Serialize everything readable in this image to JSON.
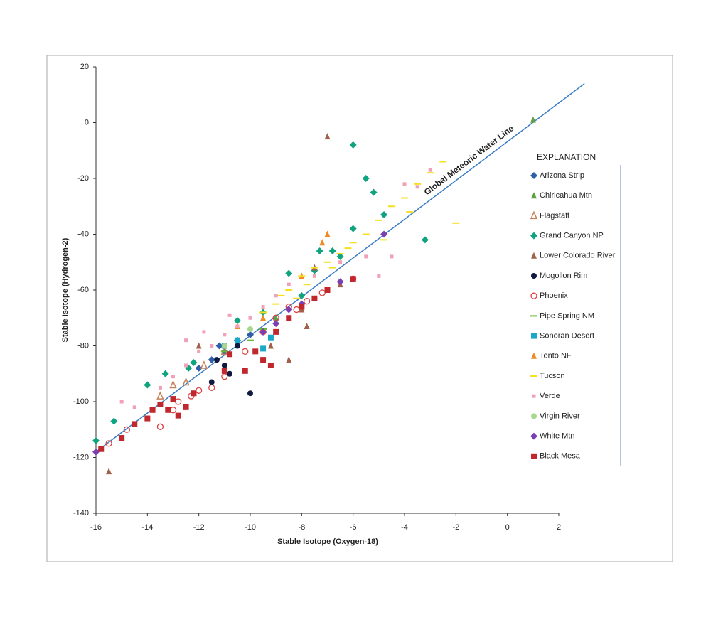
{
  "chart_data": {
    "type": "scatter",
    "x_label": "Stable Isotope (Oxygen-18)",
    "y_label": "Stable Isotope (Hydrogen-2)",
    "xlim": [
      -16,
      2
    ],
    "ylim": [
      -140,
      20
    ],
    "xticks": [
      -16,
      -14,
      -12,
      -10,
      -8,
      -6,
      -4,
      -2,
      0,
      2
    ],
    "yticks": [
      20,
      0,
      -20,
      -40,
      -60,
      -80,
      -100,
      -120,
      -140
    ],
    "legend_title": "EXPLANATION",
    "legend_position": "right",
    "reference_line": {
      "label": "Global Meteoric Water Line",
      "color": "#3a7cc4",
      "x": [
        -16,
        3
      ],
      "y": [
        -118,
        14
      ]
    },
    "series": [
      {
        "name": "Arizona Strip",
        "marker": "diamond",
        "color": "#2e5fa8",
        "x": [
          -11.5,
          -11,
          -10.5,
          -12,
          -10,
          -11.2
        ],
        "values": [
          -85,
          -82,
          -78,
          -88,
          -76,
          -80
        ]
      },
      {
        "name": "Chiricahua Mtn",
        "marker": "triangle",
        "color": "#5fa040",
        "x": [
          1,
          -9
        ],
        "values": [
          1,
          -70
        ]
      },
      {
        "name": "Flagstaff",
        "marker": "open-triangle",
        "color": "#c8805a",
        "x": [
          -13.5,
          -12.5,
          -11.8,
          -11,
          -13
        ],
        "values": [
          -98,
          -93,
          -87,
          -82,
          -94
        ]
      },
      {
        "name": "Grand Canyon NP",
        "marker": "diamond",
        "color": "#10a37f",
        "x": [
          -6,
          -5.5,
          -16,
          -15.3,
          -14,
          -13.3,
          -12.2,
          -12.4,
          -10.5,
          -9.5,
          -8.5,
          -7.3,
          -6.5,
          -6,
          -5.2,
          -4.8,
          -3.2,
          -6.8,
          -7.5,
          -8
        ],
        "values": [
          -8,
          -20,
          -114,
          -107,
          -94,
          -90,
          -86,
          -88,
          -71,
          -68,
          -54,
          -46,
          -48,
          -38,
          -25,
          -33,
          -42,
          -46,
          -53,
          -62
        ]
      },
      {
        "name": "Lower Colorado River",
        "marker": "triangle",
        "color": "#a0604a",
        "x": [
          -7,
          -15.5,
          -7.5,
          -8,
          -9.2,
          -8.5,
          -12,
          -7.8,
          -6.5
        ],
        "values": [
          -5,
          -125,
          -52,
          -67,
          -80,
          -85,
          -80,
          -73,
          -58
        ]
      },
      {
        "name": "Mogollon Rim",
        "marker": "circle",
        "color": "#101a40",
        "x": [
          -10,
          -11.5,
          -11,
          -10.8,
          -11.3,
          -10.5
        ],
        "values": [
          -97,
          -93,
          -87,
          -90,
          -85,
          -80
        ]
      },
      {
        "name": "Phoenix",
        "marker": "open-circle",
        "color": "#e04040",
        "x": [
          -15.5,
          -14.8,
          -13.5,
          -13,
          -12.3,
          -12,
          -11.5,
          -11,
          -10.2,
          -9.5,
          -9,
          -8.5,
          -7.8,
          -7.2,
          -6,
          -8.2,
          -12.8
        ],
        "values": [
          -115,
          -110,
          -109,
          -103,
          -98,
          -96,
          -95,
          -91,
          -82,
          -75,
          -70,
          -66,
          -64,
          -61,
          -56,
          -67,
          -100
        ]
      },
      {
        "name": "Pipe Spring NM",
        "marker": "dash",
        "color": "#66bb33",
        "x": [
          -10,
          -9.5,
          -11
        ],
        "values": [
          -78,
          -74,
          -82
        ]
      },
      {
        "name": "Sonoran Desert",
        "marker": "square",
        "color": "#19a8c8",
        "x": [
          -9.5,
          -9.2,
          -10.5,
          -11
        ],
        "values": [
          -81,
          -77,
          -78,
          -80
        ]
      },
      {
        "name": "Tonto NF",
        "marker": "triangle",
        "color": "#f08a24",
        "x": [
          -7,
          -7.2,
          -8,
          -9.5,
          -10.5
        ],
        "values": [
          -40,
          -43,
          -55,
          -70,
          -73
        ]
      },
      {
        "name": "Tucson",
        "marker": "dash",
        "color": "#f5e020",
        "x": [
          -8,
          -7.5,
          -7,
          -6.5,
          -6,
          -5.5,
          -5,
          -4.5,
          -4,
          -3.5,
          -3,
          -2.5,
          -2,
          -8.5,
          -9,
          -8.8,
          -7.8,
          -6.8,
          -6.2,
          -4.8,
          -3.8,
          -9.5,
          -8.2
        ],
        "values": [
          -55,
          -52,
          -50,
          -47,
          -43,
          -40,
          -35,
          -30,
          -27,
          -22,
          -18,
          -14,
          -36,
          -60,
          -65,
          -62,
          -58,
          -52,
          -45,
          -42,
          -32,
          -68,
          -63
        ]
      },
      {
        "name": "Verde",
        "marker": "small-square",
        "color": "#f0a0b8",
        "x": [
          -15,
          -14.5,
          -13.5,
          -13,
          -12.5,
          -12,
          -11.5,
          -11,
          -10.5,
          -10,
          -9.5,
          -9,
          -8.5,
          -7.5,
          -6.5,
          -5.5,
          -4.5,
          -5,
          -3.5,
          -3,
          -4,
          -12.5,
          -11.8,
          -10.8
        ],
        "values": [
          -100,
          -102,
          -95,
          -91,
          -87,
          -82,
          -80,
          -76,
          -73,
          -70,
          -66,
          -62,
          -58,
          -55,
          -50,
          -48,
          -48,
          -55,
          -23,
          -17,
          -22,
          -78,
          -75,
          -69
        ]
      },
      {
        "name": "Virgin River",
        "marker": "circle",
        "color": "#a8d890",
        "x": [
          -11,
          -10
        ],
        "values": [
          -80,
          -74
        ]
      },
      {
        "name": "White Mtn",
        "marker": "diamond",
        "color": "#7a3fb0",
        "x": [
          -16,
          -4.8,
          -6.5,
          -8,
          -8.5,
          -9,
          -9.5
        ],
        "values": [
          -118,
          -40,
          -57,
          -65,
          -67,
          -72,
          -75
        ]
      },
      {
        "name": "Black Mesa",
        "marker": "square",
        "color": "#c0282e",
        "x": [
          -15.8,
          -15,
          -14.5,
          -14,
          -13.8,
          -13.5,
          -13.2,
          -13,
          -12.8,
          -12.5,
          -12.2,
          -11,
          -10.8,
          -10.2,
          -9.8,
          -9.5,
          -9,
          -8.5,
          -8,
          -7.5,
          -6,
          -7,
          -9.2
        ],
        "values": [
          -117,
          -113,
          -108,
          -106,
          -103,
          -101,
          -103,
          -99,
          -105,
          -102,
          -97,
          -89,
          -83,
          -89,
          -82,
          -85,
          -75,
          -70,
          -66,
          -63,
          -56,
          -60,
          -87
        ]
      }
    ]
  }
}
